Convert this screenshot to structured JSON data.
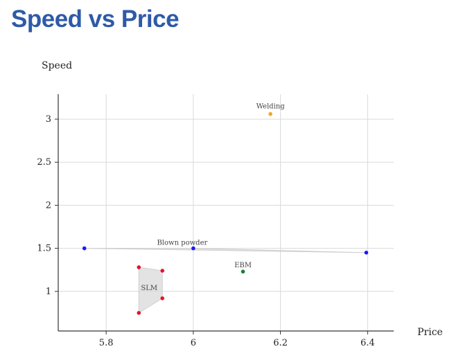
{
  "page": {
    "title": "Speed vs Price"
  },
  "chart_data": {
    "type": "scatter",
    "title": "Speed vs Price",
    "xlabel": "Price",
    "ylabel": "Speed",
    "xlim": [
      5.69,
      6.46
    ],
    "ylim": [
      0.54,
      3.29
    ],
    "xticks": [
      5.8,
      6,
      6.2,
      6.4
    ],
    "xtick_labels": [
      "5.8",
      "6",
      "6.2",
      "6.4"
    ],
    "yticks": [
      1,
      1.5,
      2,
      2.5,
      3
    ],
    "ytick_labels": [
      "1",
      "1.5",
      "2",
      "2.5",
      "3"
    ],
    "grid": true,
    "groups": [
      {
        "label": "Welding",
        "color": "#f5a623",
        "points": [
          [
            6.177,
            3.06
          ]
        ]
      },
      {
        "label": "Blown powder",
        "color": "#1a1aff",
        "points": [
          [
            5.75,
            1.5
          ],
          [
            6.0,
            1.5
          ],
          [
            6.397,
            1.45
          ]
        ]
      },
      {
        "label": "EBM",
        "color": "#1a7f2e",
        "points": [
          [
            6.114,
            1.23
          ]
        ]
      },
      {
        "label": "SLM",
        "color": "#e8112d",
        "points": [
          [
            5.875,
            1.28
          ],
          [
            5.929,
            1.24
          ],
          [
            5.929,
            0.92
          ],
          [
            5.875,
            0.75
          ]
        ]
      }
    ]
  }
}
